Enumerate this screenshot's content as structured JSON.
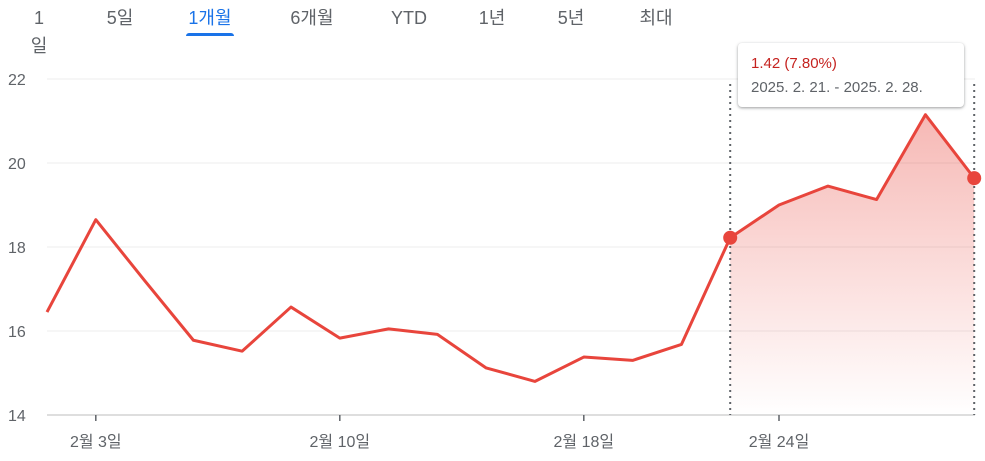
{
  "tabs": [
    {
      "label": "1일",
      "active": false
    },
    {
      "label": "5일",
      "active": false
    },
    {
      "label": "1개월",
      "active": true
    },
    {
      "label": "6개월",
      "active": false
    },
    {
      "label": "YTD",
      "active": false
    },
    {
      "label": "1년",
      "active": false
    },
    {
      "label": "5년",
      "active": false
    },
    {
      "label": "최대",
      "active": false
    }
  ],
  "tooltip": {
    "change": "1.42 (7.80%)",
    "range": "2025. 2. 21. - 2025. 2. 28."
  },
  "colors": {
    "line": "#e8453c",
    "accent": "#1a73e8",
    "change_negative": "#c5221f",
    "grid": "#ececec"
  },
  "chart_data": {
    "type": "line",
    "title": "",
    "xlabel": "",
    "ylabel": "",
    "ylim": [
      14,
      22
    ],
    "y_ticks": [
      14,
      16,
      18,
      20,
      22
    ],
    "x_tick_labels": [
      "2월 3일",
      "2월 10일",
      "2월 18일",
      "2월 24일"
    ],
    "grid": true,
    "series": [
      {
        "values": [
          16.45,
          18.65,
          17.2,
          15.78,
          15.52,
          16.57,
          15.83,
          16.05,
          15.92,
          15.12,
          14.8,
          15.38,
          15.3,
          15.68,
          18.22,
          19.0,
          19.45,
          19.13,
          21.15,
          19.64
        ]
      }
    ],
    "x_tick_indices": [
      1,
      6,
      11,
      15
    ],
    "selection": {
      "start_index": 14,
      "end_index": 19,
      "start_value": 18.22,
      "end_value": 19.64
    }
  }
}
